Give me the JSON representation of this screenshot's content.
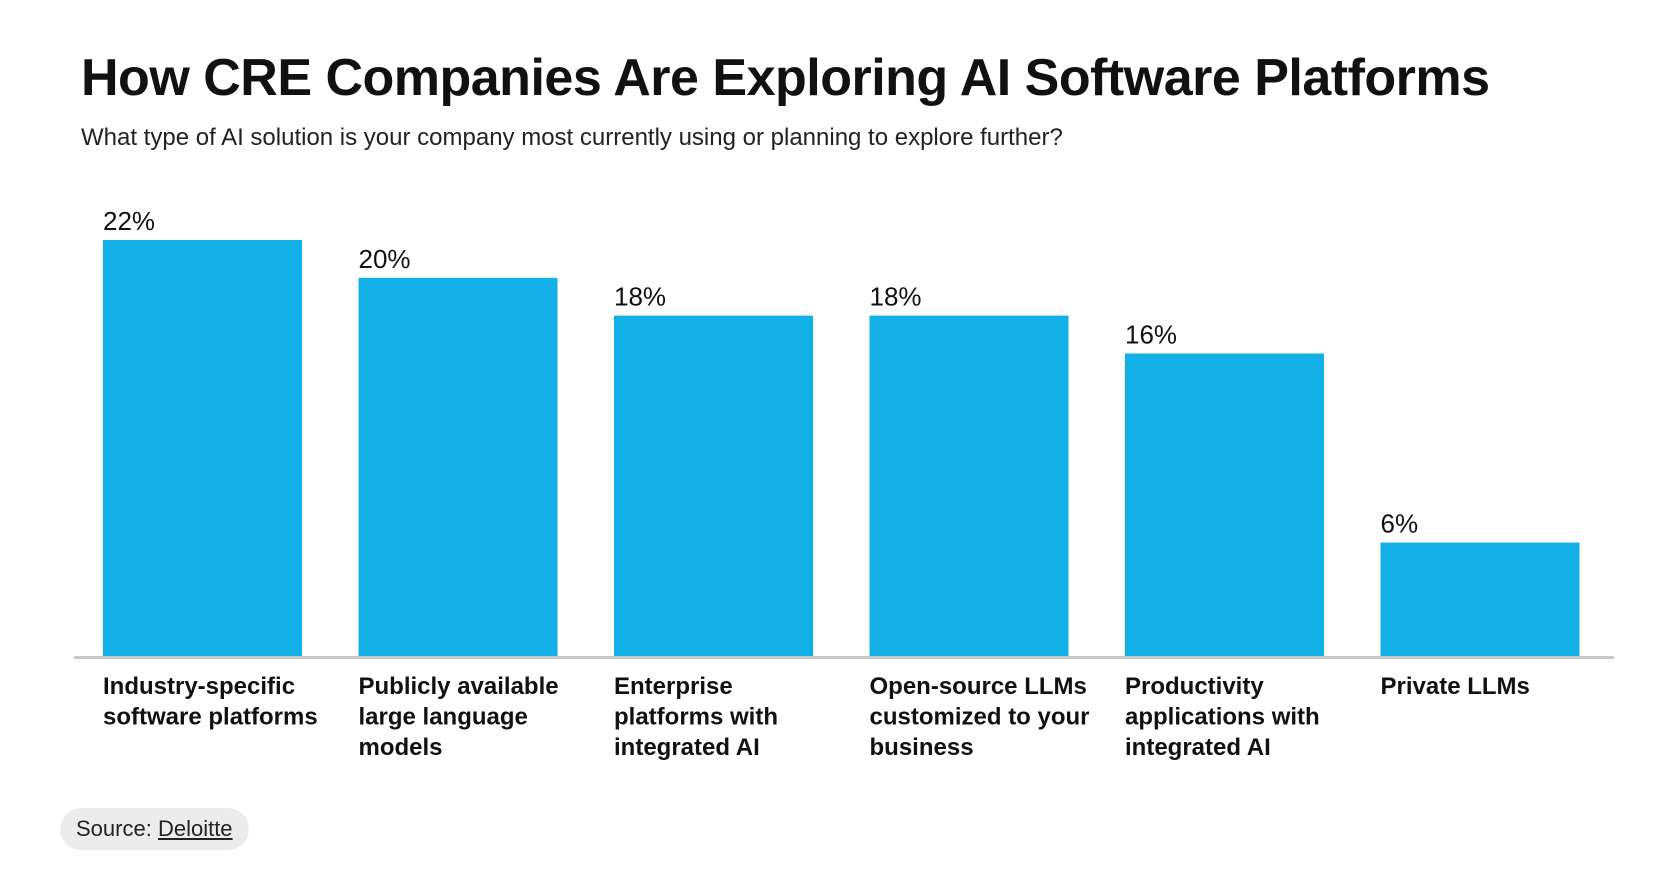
{
  "title": "How CRE Companies Are Exploring AI Software Platforms",
  "subtitle": "What type of AI solution is your company most currently using or planning to explore further?",
  "source": {
    "label": "Source:",
    "link_text": "Deloitte"
  },
  "colors": {
    "bar": "#12b0e6",
    "axis": "#c8c8c8",
    "text": "#111111"
  },
  "chart_data": {
    "type": "bar",
    "categories": [
      [
        "Industry-specific",
        "software platforms"
      ],
      [
        "Publicly available",
        "large language",
        "models"
      ],
      [
        "Enterprise",
        "platforms with",
        "integrated AI"
      ],
      [
        "Open-source LLMs",
        "customized to your",
        "business"
      ],
      [
        "Productivity",
        "applications with",
        "integrated AI"
      ],
      [
        "Private LLMs"
      ]
    ],
    "values": [
      22,
      20,
      18,
      18,
      16,
      6
    ],
    "data_labels": [
      "22%",
      "20%",
      "18%",
      "18%",
      "16%",
      "6%"
    ],
    "unit": "%",
    "ylim": [
      0,
      22
    ],
    "grid": false,
    "legend": "none"
  }
}
